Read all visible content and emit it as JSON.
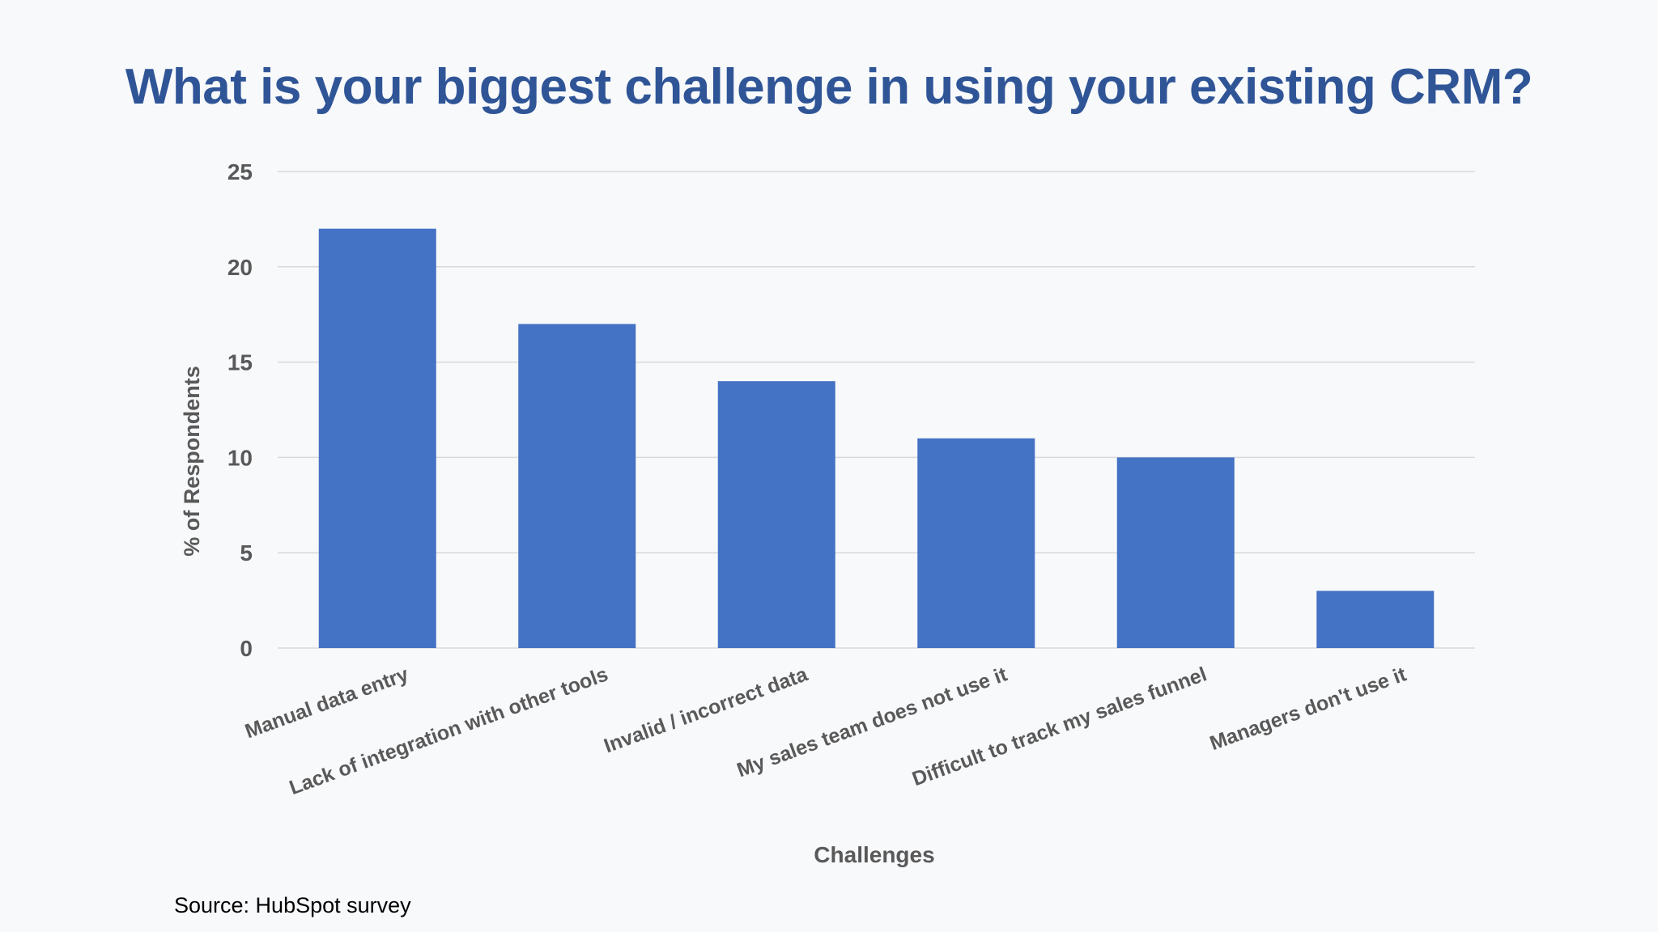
{
  "chart_data": {
    "type": "bar",
    "title": "What is your biggest challenge in using your existing CRM?",
    "xlabel": "Challenges",
    "ylabel": "% of Respondents",
    "categories": [
      "Manual data entry",
      "Lack of integration with other tools",
      "Invalid / incorrect data",
      "My sales team does not use it",
      "Difficult to track my sales funnel",
      "Managers don't use it"
    ],
    "values": [
      22,
      17,
      14,
      11,
      10,
      3
    ],
    "ylim": [
      0,
      25
    ],
    "yticks": [
      0,
      5,
      10,
      15,
      20,
      25
    ],
    "grid": true,
    "legend": "none",
    "colors": {
      "bar": "#4472c4",
      "title": "#2f5597",
      "gridline": "#d9d9d9",
      "axis_text": "#595959"
    }
  },
  "footer": {
    "source": "Source: HubSpot survey"
  }
}
